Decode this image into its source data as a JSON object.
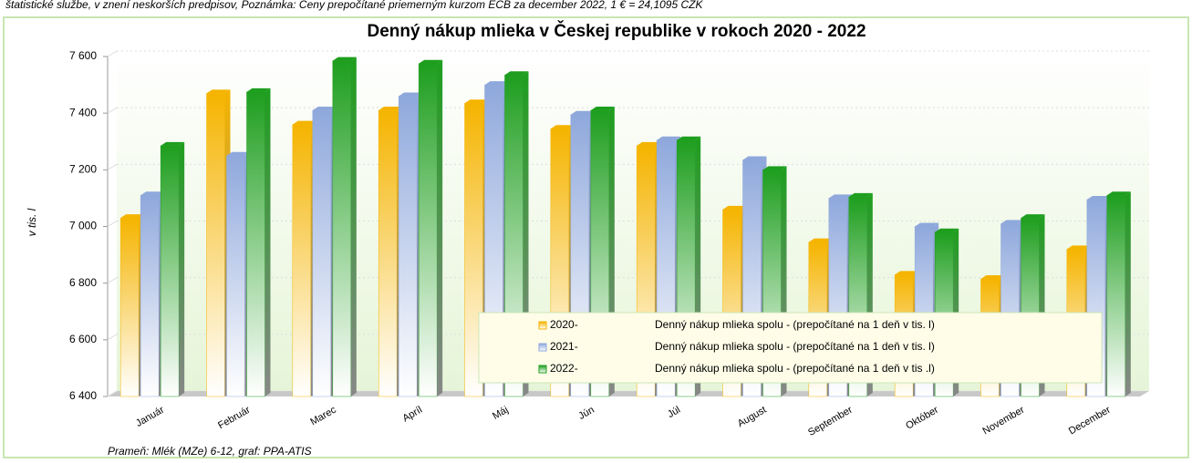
{
  "chart_data": {
    "type": "bar",
    "header_note": "štatistické službe, v znení neskorších predpisov, Poznámka: Ceny prepočítané priemerným kurzom ECB za december 2022, 1 € = 24,1095 CZK",
    "title": "Denný nákup mlieka v Českej republike v rokoch 2020 - 2022",
    "y_label": "v tis. l",
    "source": "Prameň: Mlék (MZe) 6-12, graf: PPA-ATIS",
    "categories": [
      "Január",
      "Február",
      "Marec",
      "Apríl",
      "Máj",
      "Jún",
      "Júl",
      "August",
      "September",
      "Október",
      "November",
      "December"
    ],
    "series": [
      {
        "name": "2020-",
        "description": "Denný nákup mlieka spolu - (prepočítané na 1 deň v tis. l)",
        "color": "#f5b400",
        "values": [
          7030,
          7470,
          7360,
          7410,
          7435,
          7345,
          7285,
          7060,
          6945,
          6830,
          6815,
          6920
        ]
      },
      {
        "name": "2021-",
        "description": "Denný nákup mlieka spolu - (prepočítané na 1 deň v tis. l)",
        "color": "#8fa8dc",
        "values": [
          7110,
          7250,
          7410,
          7460,
          7500,
          7395,
          7305,
          7235,
          7100,
          7000,
          7010,
          7095
        ]
      },
      {
        "name": "2022-",
        "description": "Denný nákup mlieka spolu - (prepočítané na 1 deň v tis .l)",
        "color": "#1e9e1e",
        "values": [
          7285,
          7475,
          7585,
          7575,
          7535,
          7410,
          7305,
          7200,
          7105,
          6980,
          7030,
          7110
        ]
      }
    ],
    "ylim": [
      6400,
      7600
    ],
    "yticks": [
      {
        "value": 6400,
        "label": "6 400"
      },
      {
        "value": 6600,
        "label": "6 600"
      },
      {
        "value": 6800,
        "label": "6 800"
      },
      {
        "value": 7000,
        "label": "7 000"
      },
      {
        "value": 7200,
        "label": "7 200"
      },
      {
        "value": 7400,
        "label": "7 400"
      },
      {
        "value": 7600,
        "label": "7 600"
      }
    ],
    "grid": true,
    "legend": "lower right"
  }
}
